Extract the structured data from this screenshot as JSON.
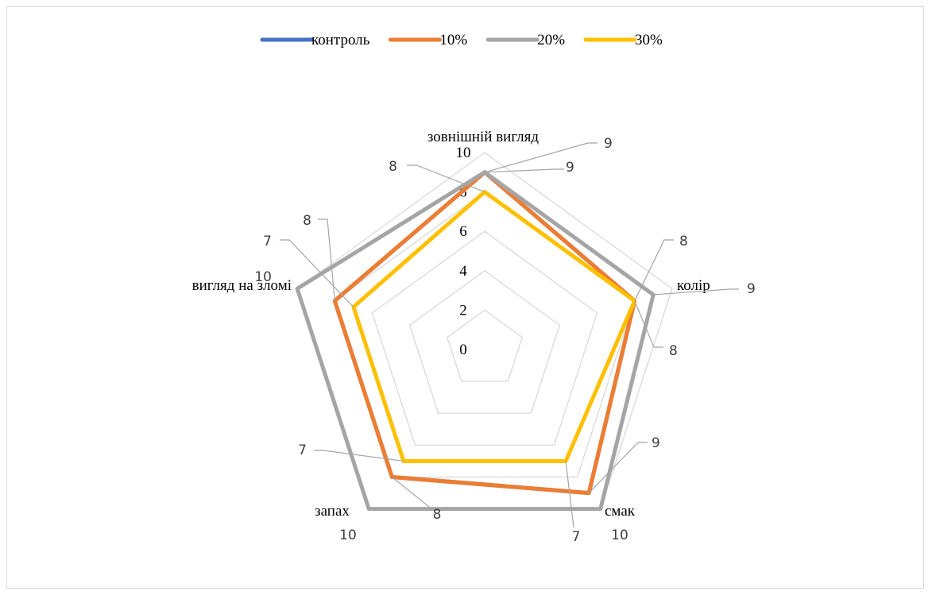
{
  "chart_data": {
    "type": "radar",
    "categories": [
      "зовнішній вигляд",
      "колір",
      "смак",
      "запах",
      "вигляд на зломі"
    ],
    "axis": {
      "min": 0,
      "max": 10,
      "ticks": [
        "0",
        "2",
        "4",
        "6",
        "8",
        "10"
      ]
    },
    "legend_position": "top",
    "grid": true,
    "series": [
      {
        "name": "контроль",
        "color": "#4472c4",
        "values": [
          9,
          8,
          9,
          8,
          8
        ],
        "value_labels": [
          "9",
          "8",
          "9",
          "8",
          "8"
        ]
      },
      {
        "name": "10%",
        "color": "#ed7d31",
        "values": [
          9,
          8,
          9,
          8,
          8
        ],
        "value_labels": []
      },
      {
        "name": "20%",
        "color": "#a5a5a5",
        "values": [
          9,
          9,
          10,
          10,
          10
        ],
        "value_labels": [
          "9",
          "9",
          "10",
          "10",
          "10"
        ]
      },
      {
        "name": "30%",
        "color": "#ffc000",
        "values": [
          8,
          8,
          7,
          7,
          7
        ],
        "value_labels": [
          "8",
          "8",
          "7",
          "7",
          "7"
        ]
      }
    ]
  }
}
